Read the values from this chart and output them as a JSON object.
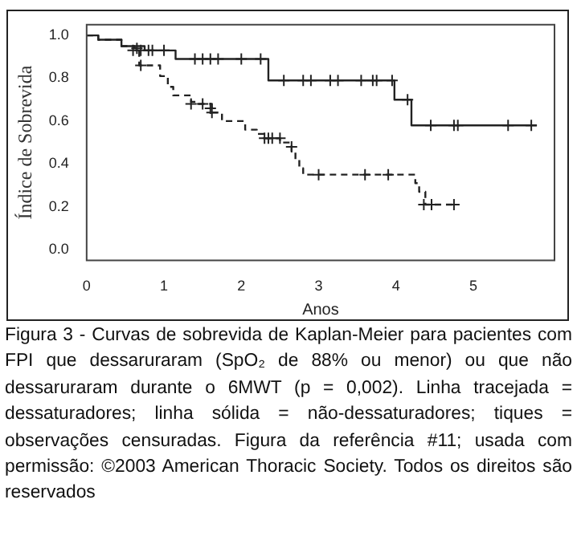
{
  "chart_data": {
    "type": "step",
    "xlabel": "Anos",
    "ylabel": "Índice de Sobrevida",
    "xlim": [
      0,
      6.05
    ],
    "ylim": [
      -0.05,
      1.05
    ],
    "xticks": [
      0,
      1,
      2,
      3,
      4,
      5
    ],
    "yticks": [
      {
        "value": 0,
        "label": "0.0"
      },
      0.2,
      0.4,
      0.6,
      0.8,
      {
        "value": 1,
        "label": "1.0"
      }
    ],
    "grid": false,
    "legend": false,
    "annotations": [
      "Figura 3 - Curvas de sobrevida de Kaplan-Meier para pacientes com FPI que dessaruraram (SpO₂ de 88% ou menor) ou que não dessaruraram durante o 6MWT (p = 0,002). Linha tracejada = dessaturadores; linha sólida = não-dessaturadores; tiques = observações censuradas. Figura da referência #11; usada com permissão: ©2003 American Thoracic Society. Todos os direitos são reservados"
    ],
    "series": [
      {
        "x": [
          0,
          0.15,
          0.45,
          0.75,
          1.15,
          2.35,
          3.98,
          4.2,
          5.82
        ],
        "values": [
          1,
          0.98,
          0.95,
          0.93,
          0.89,
          0.79,
          0.7,
          0.58,
          0.58
        ],
        "color": "#222222",
        "line_style": "solid",
        "marker": "none"
      },
      {
        "x": [
          0,
          0.15,
          0.45,
          0.62,
          0.68,
          0.95,
          1.05,
          1.12,
          1.35,
          1.45,
          1.62,
          1.75,
          2.05,
          2.2,
          2.3,
          2.5,
          2.65,
          2.7,
          2.75,
          2.8,
          4.25,
          4.3,
          4.38,
          4.75
        ],
        "values": [
          1,
          0.98,
          0.95,
          0.94,
          0.86,
          0.81,
          0.76,
          0.72,
          0.69,
          0.68,
          0.64,
          0.6,
          0.56,
          0.54,
          0.52,
          0.5,
          0.46,
          0.42,
          0.38,
          0.35,
          0.31,
          0.27,
          0.21,
          0.21
        ],
        "color": "#222222",
        "line_style": "dashed",
        "marker": "none"
      },
      {
        "type": "scatter",
        "x": [
          0.6,
          0.7,
          0.8,
          0.85,
          1.0,
          1.4,
          1.5,
          1.6,
          1.7,
          2.0,
          2.25,
          2.55,
          2.8,
          2.9,
          3.15,
          3.25,
          3.55,
          3.7,
          3.75,
          3.95,
          4.15,
          4.45,
          4.75,
          4.8,
          5.45,
          5.75
        ],
        "values": [
          0.93,
          0.93,
          0.93,
          0.93,
          0.93,
          0.89,
          0.89,
          0.89,
          0.89,
          0.89,
          0.89,
          0.79,
          0.79,
          0.79,
          0.79,
          0.79,
          0.79,
          0.79,
          0.79,
          0.79,
          0.7,
          0.58,
          0.58,
          0.58,
          0.58,
          0.58
        ],
        "color": "#222222",
        "marker": "cross"
      },
      {
        "type": "scatter",
        "x": [
          0.65,
          0.7,
          1.35,
          1.5,
          1.6,
          1.62,
          2.3,
          2.35,
          2.4,
          2.5,
          2.65,
          3.0,
          3.6,
          3.9,
          4.36,
          4.46,
          4.75
        ],
        "values": [
          0.94,
          0.86,
          0.68,
          0.68,
          0.66,
          0.64,
          0.52,
          0.52,
          0.52,
          0.52,
          0.48,
          0.35,
          0.35,
          0.35,
          0.21,
          0.21,
          0.21
        ],
        "color": "#222222",
        "marker": "cross"
      }
    ]
  }
}
